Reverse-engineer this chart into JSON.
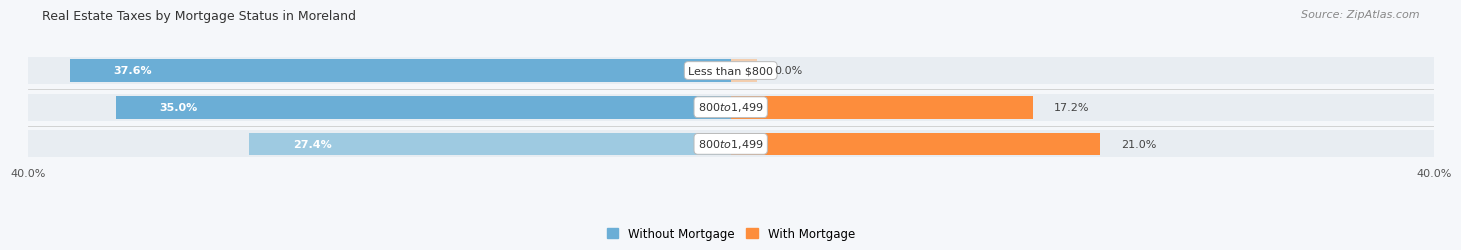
{
  "title": "Real Estate Taxes by Mortgage Status in Moreland",
  "source": "Source: ZipAtlas.com",
  "categories": [
    "Less than $800",
    "$800 to $1,499",
    "$800 to $1,499"
  ],
  "without_mortgage": [
    37.6,
    35.0,
    27.4
  ],
  "with_mortgage": [
    0.0,
    17.2,
    21.0
  ],
  "xlim": [
    -40,
    40
  ],
  "bar_colors_without": [
    "#6baed6",
    "#6baed6",
    "#9ecae1"
  ],
  "bar_colors_with": [
    "#fdae6b",
    "#fd8d3c",
    "#fd8d3c"
  ],
  "bar_bg_color": "#e8edf2",
  "legend_color_without": "#6baed6",
  "legend_color_with": "#fd8d3c",
  "figure_bg": "#f5f7fa",
  "title_fontsize": 9,
  "source_fontsize": 8,
  "label_fontsize": 8,
  "cat_fontsize": 8,
  "legend_fontsize": 8.5,
  "xtick_left_label": "40.0%",
  "xtick_right_label": "40.0%"
}
